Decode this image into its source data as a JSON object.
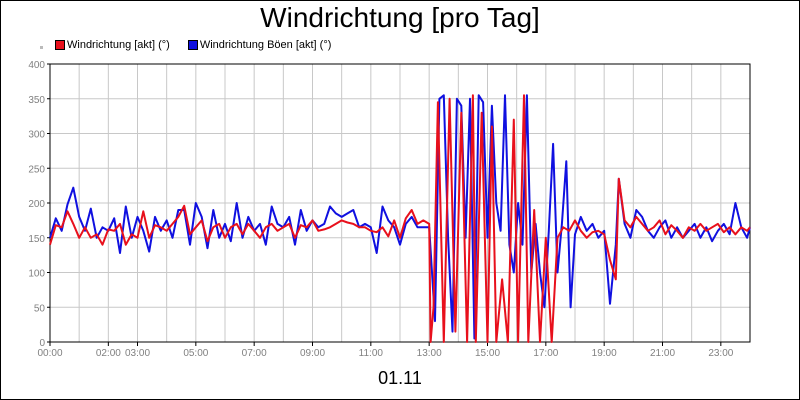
{
  "chart_data": {
    "type": "line",
    "title": "Windrichtung [pro Tag]",
    "xlabel": "01.11",
    "ylabel": "",
    "ylim": [
      0,
      400
    ],
    "xlim": [
      0,
      24
    ],
    "grid": true,
    "legend_position": "top-left",
    "y_ticks": [
      "0",
      "50",
      "100",
      "150",
      "200",
      "250",
      "300",
      "350",
      "400"
    ],
    "x_ticks": [
      {
        "h": 0,
        "label": "00:00"
      },
      {
        "h": 2,
        "label": "02:00"
      },
      {
        "h": 3,
        "label": "03:00"
      },
      {
        "h": 5,
        "label": "05:00"
      },
      {
        "h": 7,
        "label": "07:00"
      },
      {
        "h": 9,
        "label": "09:00"
      },
      {
        "h": 11,
        "label": "11:00"
      },
      {
        "h": 13,
        "label": "13:00"
      },
      {
        "h": 15,
        "label": "15:00"
      },
      {
        "h": 17,
        "label": "17:00"
      },
      {
        "h": 19,
        "label": "19:00"
      },
      {
        "h": 21,
        "label": "21:00"
      },
      {
        "h": 23,
        "label": "23:00"
      }
    ],
    "series": [
      {
        "name": "Windrichtung [akt] (°)",
        "color": "#e8101c",
        "points": [
          [
            0.0,
            140
          ],
          [
            0.2,
            168
          ],
          [
            0.4,
            165
          ],
          [
            0.6,
            188
          ],
          [
            0.8,
            170
          ],
          [
            1.0,
            150
          ],
          [
            1.2,
            165
          ],
          [
            1.4,
            150
          ],
          [
            1.6,
            155
          ],
          [
            1.8,
            140
          ],
          [
            2.0,
            162
          ],
          [
            2.2,
            160
          ],
          [
            2.4,
            170
          ],
          [
            2.6,
            140
          ],
          [
            2.8,
            155
          ],
          [
            3.0,
            150
          ],
          [
            3.2,
            188
          ],
          [
            3.4,
            150
          ],
          [
            3.6,
            168
          ],
          [
            3.8,
            165
          ],
          [
            4.0,
            160
          ],
          [
            4.2,
            170
          ],
          [
            4.4,
            180
          ],
          [
            4.6,
            196
          ],
          [
            4.8,
            155
          ],
          [
            5.0,
            165
          ],
          [
            5.2,
            175
          ],
          [
            5.4,
            145
          ],
          [
            5.6,
            165
          ],
          [
            5.8,
            170
          ],
          [
            6.0,
            150
          ],
          [
            6.2,
            165
          ],
          [
            6.4,
            170
          ],
          [
            6.6,
            155
          ],
          [
            6.8,
            170
          ],
          [
            7.0,
            160
          ],
          [
            7.2,
            150
          ],
          [
            7.4,
            165
          ],
          [
            7.6,
            170
          ],
          [
            7.8,
            160
          ],
          [
            8.0,
            165
          ],
          [
            8.2,
            170
          ],
          [
            8.4,
            150
          ],
          [
            8.6,
            168
          ],
          [
            8.8,
            165
          ],
          [
            9.0,
            175
          ],
          [
            9.2,
            160
          ],
          [
            9.4,
            162
          ],
          [
            9.6,
            165
          ],
          [
            9.8,
            170
          ],
          [
            10.0,
            175
          ],
          [
            10.2,
            172
          ],
          [
            10.4,
            170
          ],
          [
            10.6,
            165
          ],
          [
            10.8,
            165
          ],
          [
            11.0,
            160
          ],
          [
            11.2,
            158
          ],
          [
            11.4,
            165
          ],
          [
            11.6,
            152
          ],
          [
            11.8,
            175
          ],
          [
            12.0,
            150
          ],
          [
            12.2,
            178
          ],
          [
            12.4,
            190
          ],
          [
            12.6,
            170
          ],
          [
            12.8,
            175
          ],
          [
            13.0,
            170
          ],
          [
            13.05,
            0
          ],
          [
            13.15,
            50
          ],
          [
            13.3,
            345
          ],
          [
            13.5,
            0
          ],
          [
            13.7,
            350
          ],
          [
            13.9,
            15
          ],
          [
            14.1,
            330
          ],
          [
            14.3,
            0
          ],
          [
            14.5,
            355
          ],
          [
            14.6,
            0
          ],
          [
            14.8,
            330
          ],
          [
            15.0,
            0
          ],
          [
            15.15,
            310
          ],
          [
            15.3,
            0
          ],
          [
            15.5,
            90
          ],
          [
            15.7,
            0
          ],
          [
            15.9,
            320
          ],
          [
            16.05,
            0
          ],
          [
            16.25,
            355
          ],
          [
            16.4,
            0
          ],
          [
            16.6,
            190
          ],
          [
            16.8,
            0
          ],
          [
            17.0,
            150
          ],
          [
            17.2,
            0
          ],
          [
            17.4,
            150
          ],
          [
            17.6,
            165
          ],
          [
            17.8,
            160
          ],
          [
            18.0,
            175
          ],
          [
            18.2,
            160
          ],
          [
            18.4,
            150
          ],
          [
            18.6,
            158
          ],
          [
            18.8,
            160
          ],
          [
            19.0,
            155
          ],
          [
            19.2,
            118
          ],
          [
            19.4,
            90
          ],
          [
            19.5,
            235
          ],
          [
            19.7,
            175
          ],
          [
            19.9,
            165
          ],
          [
            20.1,
            180
          ],
          [
            20.3,
            170
          ],
          [
            20.5,
            160
          ],
          [
            20.7,
            165
          ],
          [
            20.9,
            175
          ],
          [
            21.1,
            155
          ],
          [
            21.3,
            168
          ],
          [
            21.5,
            160
          ],
          [
            21.7,
            150
          ],
          [
            21.9,
            165
          ],
          [
            22.1,
            160
          ],
          [
            22.3,
            170
          ],
          [
            22.5,
            160
          ],
          [
            22.7,
            165
          ],
          [
            22.9,
            170
          ],
          [
            23.1,
            158
          ],
          [
            23.3,
            165
          ],
          [
            23.5,
            155
          ],
          [
            23.7,
            165
          ],
          [
            23.9,
            160
          ],
          [
            24.0,
            165
          ]
        ]
      },
      {
        "name": "Windrichtung Böen [akt] (°)",
        "color": "#1010e0",
        "points": [
          [
            0.0,
            150
          ],
          [
            0.2,
            178
          ],
          [
            0.4,
            160
          ],
          [
            0.6,
            198
          ],
          [
            0.8,
            222
          ],
          [
            1.0,
            180
          ],
          [
            1.2,
            160
          ],
          [
            1.4,
            192
          ],
          [
            1.6,
            150
          ],
          [
            1.8,
            165
          ],
          [
            2.0,
            160
          ],
          [
            2.2,
            178
          ],
          [
            2.4,
            128
          ],
          [
            2.6,
            195
          ],
          [
            2.8,
            150
          ],
          [
            3.0,
            180
          ],
          [
            3.2,
            160
          ],
          [
            3.4,
            130
          ],
          [
            3.6,
            180
          ],
          [
            3.8,
            160
          ],
          [
            4.0,
            175
          ],
          [
            4.2,
            150
          ],
          [
            4.4,
            190
          ],
          [
            4.6,
            190
          ],
          [
            4.8,
            140
          ],
          [
            5.0,
            200
          ],
          [
            5.2,
            180
          ],
          [
            5.4,
            135
          ],
          [
            5.6,
            190
          ],
          [
            5.8,
            150
          ],
          [
            6.0,
            170
          ],
          [
            6.2,
            145
          ],
          [
            6.4,
            200
          ],
          [
            6.6,
            150
          ],
          [
            6.8,
            180
          ],
          [
            7.0,
            160
          ],
          [
            7.2,
            170
          ],
          [
            7.4,
            140
          ],
          [
            7.6,
            195
          ],
          [
            7.8,
            170
          ],
          [
            8.0,
            165
          ],
          [
            8.2,
            180
          ],
          [
            8.4,
            140
          ],
          [
            8.6,
            190
          ],
          [
            8.8,
            160
          ],
          [
            9.0,
            175
          ],
          [
            9.2,
            165
          ],
          [
            9.4,
            170
          ],
          [
            9.6,
            195
          ],
          [
            9.8,
            185
          ],
          [
            10.0,
            180
          ],
          [
            10.2,
            185
          ],
          [
            10.4,
            190
          ],
          [
            10.6,
            165
          ],
          [
            10.8,
            170
          ],
          [
            11.0,
            165
          ],
          [
            11.2,
            128
          ],
          [
            11.4,
            195
          ],
          [
            11.6,
            175
          ],
          [
            11.8,
            165
          ],
          [
            12.0,
            140
          ],
          [
            12.2,
            170
          ],
          [
            12.4,
            180
          ],
          [
            12.6,
            165
          ],
          [
            12.8,
            165
          ],
          [
            13.0,
            165
          ],
          [
            13.2,
            30
          ],
          [
            13.35,
            350
          ],
          [
            13.5,
            355
          ],
          [
            13.65,
            150
          ],
          [
            13.8,
            15
          ],
          [
            13.95,
            350
          ],
          [
            14.1,
            340
          ],
          [
            14.25,
            150
          ],
          [
            14.4,
            350
          ],
          [
            14.55,
            5
          ],
          [
            14.7,
            355
          ],
          [
            14.85,
            345
          ],
          [
            15.0,
            150
          ],
          [
            15.15,
            340
          ],
          [
            15.3,
            200
          ],
          [
            15.45,
            160
          ],
          [
            15.6,
            355
          ],
          [
            15.75,
            140
          ],
          [
            15.9,
            100
          ],
          [
            16.05,
            200
          ],
          [
            16.2,
            140
          ],
          [
            16.35,
            355
          ],
          [
            16.5,
            100
          ],
          [
            16.65,
            170
          ],
          [
            16.8,
            100
          ],
          [
            16.95,
            50
          ],
          [
            17.1,
            160
          ],
          [
            17.25,
            285
          ],
          [
            17.4,
            100
          ],
          [
            17.55,
            170
          ],
          [
            17.7,
            260
          ],
          [
            17.85,
            50
          ],
          [
            18.0,
            155
          ],
          [
            18.2,
            180
          ],
          [
            18.4,
            160
          ],
          [
            18.6,
            170
          ],
          [
            18.8,
            150
          ],
          [
            19.0,
            160
          ],
          [
            19.2,
            55
          ],
          [
            19.4,
            140
          ],
          [
            19.5,
            235
          ],
          [
            19.7,
            170
          ],
          [
            19.9,
            150
          ],
          [
            20.1,
            190
          ],
          [
            20.3,
            180
          ],
          [
            20.5,
            160
          ],
          [
            20.7,
            150
          ],
          [
            20.9,
            165
          ],
          [
            21.1,
            175
          ],
          [
            21.3,
            150
          ],
          [
            21.5,
            165
          ],
          [
            21.7,
            150
          ],
          [
            21.9,
            160
          ],
          [
            22.1,
            170
          ],
          [
            22.3,
            150
          ],
          [
            22.5,
            165
          ],
          [
            22.7,
            145
          ],
          [
            22.9,
            160
          ],
          [
            23.1,
            170
          ],
          [
            23.3,
            155
          ],
          [
            23.5,
            200
          ],
          [
            23.7,
            165
          ],
          [
            23.9,
            150
          ],
          [
            24.0,
            165
          ]
        ]
      }
    ]
  }
}
